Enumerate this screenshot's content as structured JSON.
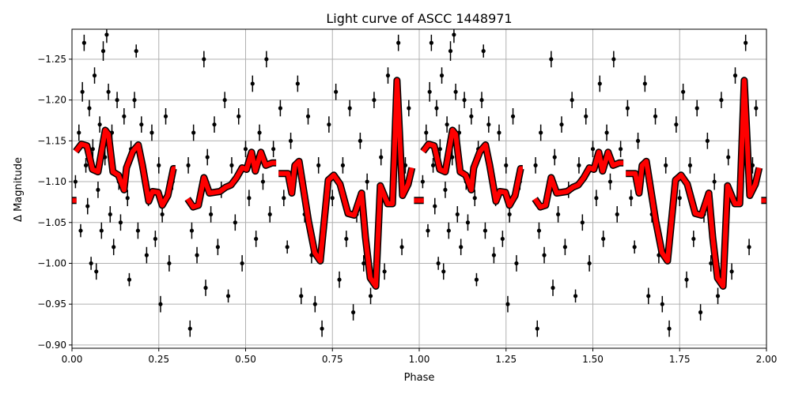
{
  "chart_data": {
    "type": "scatter",
    "title": "Light curve of ASCC 1448971",
    "xlabel": "Phase",
    "ylabel": "Δ Magnitude",
    "xlim": [
      0,
      2
    ],
    "ylim": [
      -1.2867,
      -0.896
    ],
    "y_inverted": true,
    "grid": true,
    "xticks": [
      0,
      0.25,
      0.5,
      0.75,
      1.0,
      1.25,
      1.5,
      1.75,
      2.0
    ],
    "xtick_labels": [
      "0.00",
      "0.25",
      "0.50",
      "0.75",
      "1.00",
      "1.25",
      "1.50",
      "1.75",
      "2.00"
    ],
    "yticks": [
      -1.25,
      -1.2,
      -1.15,
      -1.1,
      -1.05,
      -1.0,
      -0.95,
      -0.9
    ],
    "ytick_labels": [
      "−1.25",
      "−1.20",
      "−1.15",
      "−1.10",
      "−1.05",
      "−1.00",
      "−0.95",
      "−0.90"
    ],
    "colors": {
      "points": "#000000",
      "model": "#ff0000",
      "model_edge": "#000000",
      "grid": "#b0b0b0"
    },
    "repeat_period": 1,
    "points_columns": [
      "phase",
      "delta_mag",
      "error"
    ],
    "points": [
      [
        0.01,
        -1.1,
        0.008
      ],
      [
        0.02,
        -1.16,
        0.01
      ],
      [
        0.025,
        -1.04,
        0.008
      ],
      [
        0.03,
        -1.21,
        0.012
      ],
      [
        0.035,
        -1.27,
        0.01
      ],
      [
        0.04,
        -1.12,
        0.009
      ],
      [
        0.045,
        -1.07,
        0.01
      ],
      [
        0.05,
        -1.19,
        0.01
      ],
      [
        0.055,
        -1.0,
        0.008
      ],
      [
        0.06,
        -1.14,
        0.012
      ],
      [
        0.065,
        -1.23,
        0.01
      ],
      [
        0.07,
        -0.99,
        0.01
      ],
      [
        0.075,
        -1.09,
        0.01
      ],
      [
        0.08,
        -1.17,
        0.01
      ],
      [
        0.085,
        -1.04,
        0.01
      ],
      [
        0.09,
        -1.26,
        0.012
      ],
      [
        0.095,
        -1.13,
        0.01
      ],
      [
        0.1,
        -1.28,
        0.01
      ],
      [
        0.105,
        -1.21,
        0.01
      ],
      [
        0.11,
        -1.06,
        0.01
      ],
      [
        0.115,
        -1.16,
        0.01
      ],
      [
        0.12,
        -1.02,
        0.01
      ],
      [
        0.13,
        -1.2,
        0.01
      ],
      [
        0.135,
        -1.1,
        0.01
      ],
      [
        0.14,
        -1.05,
        0.01
      ],
      [
        0.15,
        -1.18,
        0.01
      ],
      [
        0.16,
        -1.08,
        0.01
      ],
      [
        0.165,
        -0.98,
        0.008
      ],
      [
        0.17,
        -1.14,
        0.01
      ],
      [
        0.18,
        -1.2,
        0.01
      ],
      [
        0.185,
        -1.26,
        0.008
      ],
      [
        0.19,
        -1.04,
        0.01
      ],
      [
        0.2,
        -1.17,
        0.01
      ],
      [
        0.21,
        -1.11,
        0.01
      ],
      [
        0.215,
        -1.01,
        0.01
      ],
      [
        0.22,
        -1.08,
        0.01
      ],
      [
        0.23,
        -1.16,
        0.01
      ],
      [
        0.24,
        -1.03,
        0.01
      ],
      [
        0.25,
        -1.12,
        0.01
      ],
      [
        0.255,
        -0.95,
        0.01
      ],
      [
        0.26,
        -1.06,
        0.01
      ],
      [
        0.27,
        -1.18,
        0.01
      ],
      [
        0.28,
        -1.0,
        0.01
      ],
      [
        0.29,
        -1.1,
        0.01
      ],
      [
        0.335,
        -1.12,
        0.01
      ],
      [
        0.34,
        -0.92,
        0.01
      ],
      [
        0.345,
        -1.04,
        0.01
      ],
      [
        0.35,
        -1.16,
        0.01
      ],
      [
        0.36,
        -1.01,
        0.01
      ],
      [
        0.37,
        -1.08,
        0.01
      ],
      [
        0.38,
        -1.25,
        0.01
      ],
      [
        0.385,
        -0.97,
        0.01
      ],
      [
        0.39,
        -1.13,
        0.01
      ],
      [
        0.4,
        -1.06,
        0.01
      ],
      [
        0.41,
        -1.17,
        0.01
      ],
      [
        0.42,
        -1.02,
        0.01
      ],
      [
        0.43,
        -1.09,
        0.01
      ],
      [
        0.44,
        -1.2,
        0.01
      ],
      [
        0.45,
        -0.96,
        0.008
      ],
      [
        0.46,
        -1.12,
        0.01
      ],
      [
        0.47,
        -1.05,
        0.01
      ],
      [
        0.48,
        -1.18,
        0.01
      ],
      [
        0.49,
        -1.0,
        0.01
      ],
      [
        0.5,
        -1.14,
        0.01
      ],
      [
        0.51,
        -1.08,
        0.01
      ],
      [
        0.52,
        -1.22,
        0.01
      ],
      [
        0.53,
        -1.03,
        0.01
      ],
      [
        0.54,
        -1.16,
        0.01
      ],
      [
        0.55,
        -1.1,
        0.01
      ],
      [
        0.56,
        -1.25,
        0.01
      ],
      [
        0.57,
        -1.06,
        0.01
      ],
      [
        0.58,
        -1.14,
        0.01
      ],
      [
        0.6,
        -1.19,
        0.01
      ],
      [
        0.61,
        -1.08,
        0.01
      ],
      [
        0.62,
        -1.02,
        0.008
      ],
      [
        0.63,
        -1.15,
        0.01
      ],
      [
        0.64,
        -1.1,
        0.01
      ],
      [
        0.65,
        -1.22,
        0.01
      ],
      [
        0.66,
        -0.96,
        0.01
      ],
      [
        0.67,
        -1.06,
        0.01
      ],
      [
        0.68,
        -1.18,
        0.01
      ],
      [
        0.69,
        -1.01,
        0.01
      ],
      [
        0.7,
        -0.95,
        0.01
      ],
      [
        0.71,
        -1.12,
        0.01
      ],
      [
        0.72,
        -0.92,
        0.01
      ],
      [
        0.73,
        -1.05,
        0.01
      ],
      [
        0.74,
        -1.17,
        0.01
      ],
      [
        0.75,
        -1.08,
        0.01
      ],
      [
        0.76,
        -1.21,
        0.01
      ],
      [
        0.77,
        -0.98,
        0.01
      ],
      [
        0.78,
        -1.12,
        0.01
      ],
      [
        0.79,
        -1.03,
        0.01
      ],
      [
        0.8,
        -1.19,
        0.01
      ],
      [
        0.81,
        -0.94,
        0.01
      ],
      [
        0.82,
        -1.06,
        0.01
      ],
      [
        0.83,
        -1.15,
        0.01
      ],
      [
        0.84,
        -1.0,
        0.01
      ],
      [
        0.85,
        -1.1,
        0.01
      ],
      [
        0.86,
        -0.96,
        0.01
      ],
      [
        0.87,
        -1.2,
        0.01
      ],
      [
        0.88,
        -1.04,
        0.01
      ],
      [
        0.89,
        -1.13,
        0.01
      ],
      [
        0.9,
        -0.99,
        0.01
      ],
      [
        0.91,
        -1.23,
        0.01
      ],
      [
        0.92,
        -1.08,
        0.01
      ],
      [
        0.93,
        -1.16,
        0.01
      ],
      [
        0.94,
        -1.27,
        0.01
      ],
      [
        0.95,
        -1.02,
        0.01
      ],
      [
        0.96,
        -1.12,
        0.01
      ],
      [
        0.97,
        -1.19,
        0.01
      ]
    ],
    "model_segments": [
      [
        [
          0.0,
          -1.077
        ],
        [
          0.013,
          -1.077
        ]
      ],
      [
        [
          0.011,
          -1.137
        ],
        [
          0.027,
          -1.146
        ],
        [
          0.043,
          -1.144
        ],
        [
          0.059,
          -1.115
        ],
        [
          0.075,
          -1.112
        ],
        [
          0.084,
          -1.134
        ],
        [
          0.096,
          -1.163
        ],
        [
          0.105,
          -1.158
        ],
        [
          0.118,
          -1.112
        ],
        [
          0.134,
          -1.108
        ],
        [
          0.15,
          -1.09
        ],
        [
          0.157,
          -1.117
        ],
        [
          0.175,
          -1.137
        ],
        [
          0.191,
          -1.145
        ],
        [
          0.203,
          -1.12
        ],
        [
          0.221,
          -1.076
        ],
        [
          0.232,
          -1.088
        ],
        [
          0.248,
          -1.087
        ],
        [
          0.26,
          -1.071
        ],
        [
          0.276,
          -1.083
        ],
        [
          0.292,
          -1.116
        ],
        [
          0.298,
          -1.116
        ]
      ],
      [
        [
          0.333,
          -1.079
        ],
        [
          0.349,
          -1.069
        ],
        [
          0.364,
          -1.071
        ],
        [
          0.38,
          -1.105
        ],
        [
          0.396,
          -1.086
        ],
        [
          0.426,
          -1.088
        ],
        [
          0.442,
          -1.093
        ],
        [
          0.458,
          -1.096
        ],
        [
          0.474,
          -1.105
        ],
        [
          0.49,
          -1.117
        ],
        [
          0.503,
          -1.115
        ],
        [
          0.517,
          -1.136
        ],
        [
          0.528,
          -1.113
        ],
        [
          0.544,
          -1.136
        ],
        [
          0.558,
          -1.12
        ],
        [
          0.576,
          -1.123
        ],
        [
          0.588,
          -1.123
        ]
      ],
      [
        [
          0.595,
          -1.11
        ],
        [
          0.622,
          -1.11
        ],
        [
          0.633,
          -1.086
        ],
        [
          0.642,
          -1.12
        ],
        [
          0.654,
          -1.125
        ],
        [
          0.681,
          -1.052
        ],
        [
          0.699,
          -1.013
        ],
        [
          0.715,
          -1.003
        ],
        [
          0.738,
          -1.102
        ],
        [
          0.754,
          -1.108
        ],
        [
          0.772,
          -1.097
        ],
        [
          0.795,
          -1.061
        ],
        [
          0.813,
          -1.059
        ],
        [
          0.834,
          -1.086
        ],
        [
          0.845,
          -1.032
        ],
        [
          0.859,
          -0.982
        ],
        [
          0.875,
          -0.972
        ],
        [
          0.888,
          -1.095
        ],
        [
          0.909,
          -1.073
        ],
        [
          0.923,
          -1.073
        ],
        [
          0.936,
          -1.224
        ],
        [
          0.952,
          -1.083
        ],
        [
          0.968,
          -1.097
        ],
        [
          0.979,
          -1.117
        ]
      ],
      [
        [
          0.985,
          -1.077
        ],
        [
          1.0,
          -1.077
        ]
      ]
    ]
  }
}
